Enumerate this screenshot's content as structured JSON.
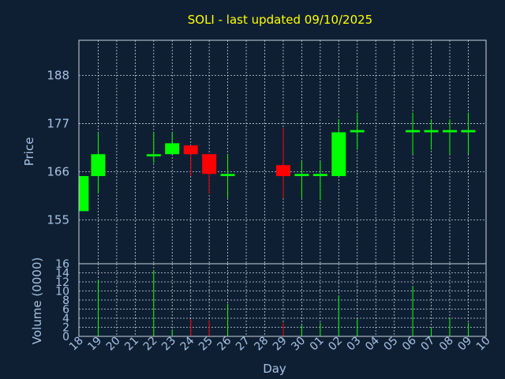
{
  "chart_data": [
    {
      "type": "candlestick",
      "title": "SOLI - last updated 09/10/2025",
      "xlabel": "",
      "ylabel": "Price",
      "ylim": [
        145,
        196
      ],
      "yticks": [
        "155",
        "166",
        "177",
        "188"
      ],
      "grid": true,
      "colors": {
        "up": "#00ff00",
        "down": "#ff0000",
        "background": "#0f1f33",
        "title": "#ffff00",
        "axis_text": "#a6c3e3",
        "grid": "#c9d3de"
      },
      "candles": [
        {
          "x": 0.1,
          "open": 157,
          "close": 165,
          "high": 165,
          "low": 157
        },
        {
          "x": 1,
          "open": 165,
          "close": 170,
          "high": 175,
          "low": 161
        },
        {
          "x": 4,
          "open": 169.5,
          "close": 170,
          "high": 175,
          "low": 168
        },
        {
          "x": 5,
          "open": 170,
          "close": 172.5,
          "high": 175,
          "low": 170
        },
        {
          "x": 6,
          "open": 172,
          "close": 170,
          "high": 172,
          "low": 165
        },
        {
          "x": 7,
          "open": 170,
          "close": 165.5,
          "high": 170,
          "low": 161
        },
        {
          "x": 8,
          "open": 165,
          "close": 165.5,
          "high": 170,
          "low": 160
        },
        {
          "x": 11,
          "open": 167.5,
          "close": 165,
          "high": 176,
          "low": 160
        },
        {
          "x": 12,
          "open": 165,
          "close": 165.5,
          "high": 168.5,
          "low": 160
        },
        {
          "x": 13,
          "open": 165,
          "close": 165.5,
          "high": 168.5,
          "low": 159.5
        },
        {
          "x": 14,
          "open": 165,
          "close": 175,
          "high": 178,
          "low": 165
        },
        {
          "x": 15,
          "open": 175,
          "close": 175.5,
          "high": 179.5,
          "low": 171
        },
        {
          "x": 18,
          "open": 175,
          "close": 175.5,
          "high": 179.5,
          "low": 170
        },
        {
          "x": 19,
          "open": 175,
          "close": 175.5,
          "high": 178,
          "low": 171
        },
        {
          "x": 20,
          "open": 175,
          "close": 175.5,
          "high": 178,
          "low": 170
        },
        {
          "x": 21,
          "open": 175,
          "close": 175.5,
          "high": 179.5,
          "low": 170
        }
      ]
    },
    {
      "type": "bar",
      "xlabel": "Day",
      "ylabel": "Volume (0000)",
      "ylim": [
        0,
        16
      ],
      "yticks": [
        "0",
        "2",
        "4",
        "6",
        "8",
        "10",
        "12",
        "14",
        "16"
      ],
      "grid": true,
      "categories": [
        "18",
        "19",
        "20",
        "21",
        "22",
        "23",
        "24",
        "25",
        "26",
        "27",
        "28",
        "29",
        "30",
        "01",
        "02",
        "03",
        "04",
        "05",
        "06",
        "07",
        "08",
        "09",
        "10"
      ],
      "bars": [
        {
          "x": 1,
          "value": 12.5,
          "color": "#00ff00"
        },
        {
          "x": 4,
          "value": 14.5,
          "color": "#00ff00"
        },
        {
          "x": 5,
          "value": 1.5,
          "color": "#00ff00"
        },
        {
          "x": 6,
          "value": 3.8,
          "color": "#ff0000"
        },
        {
          "x": 7,
          "value": 3.5,
          "color": "#ff0000"
        },
        {
          "x": 8,
          "value": 7.2,
          "color": "#00ff00"
        },
        {
          "x": 11,
          "value": 3.0,
          "color": "#ff0000"
        },
        {
          "x": 12,
          "value": 2.5,
          "color": "#00ff00"
        },
        {
          "x": 13,
          "value": 3.0,
          "color": "#00ff00"
        },
        {
          "x": 14,
          "value": 9.0,
          "color": "#00ff00"
        },
        {
          "x": 15,
          "value": 3.8,
          "color": "#00ff00"
        },
        {
          "x": 18,
          "value": 11.0,
          "color": "#00ff00"
        },
        {
          "x": 19,
          "value": 2.0,
          "color": "#00ff00"
        },
        {
          "x": 20,
          "value": 4.0,
          "color": "#00ff00"
        },
        {
          "x": 21,
          "value": 3.0,
          "color": "#00ff00"
        }
      ]
    }
  ]
}
